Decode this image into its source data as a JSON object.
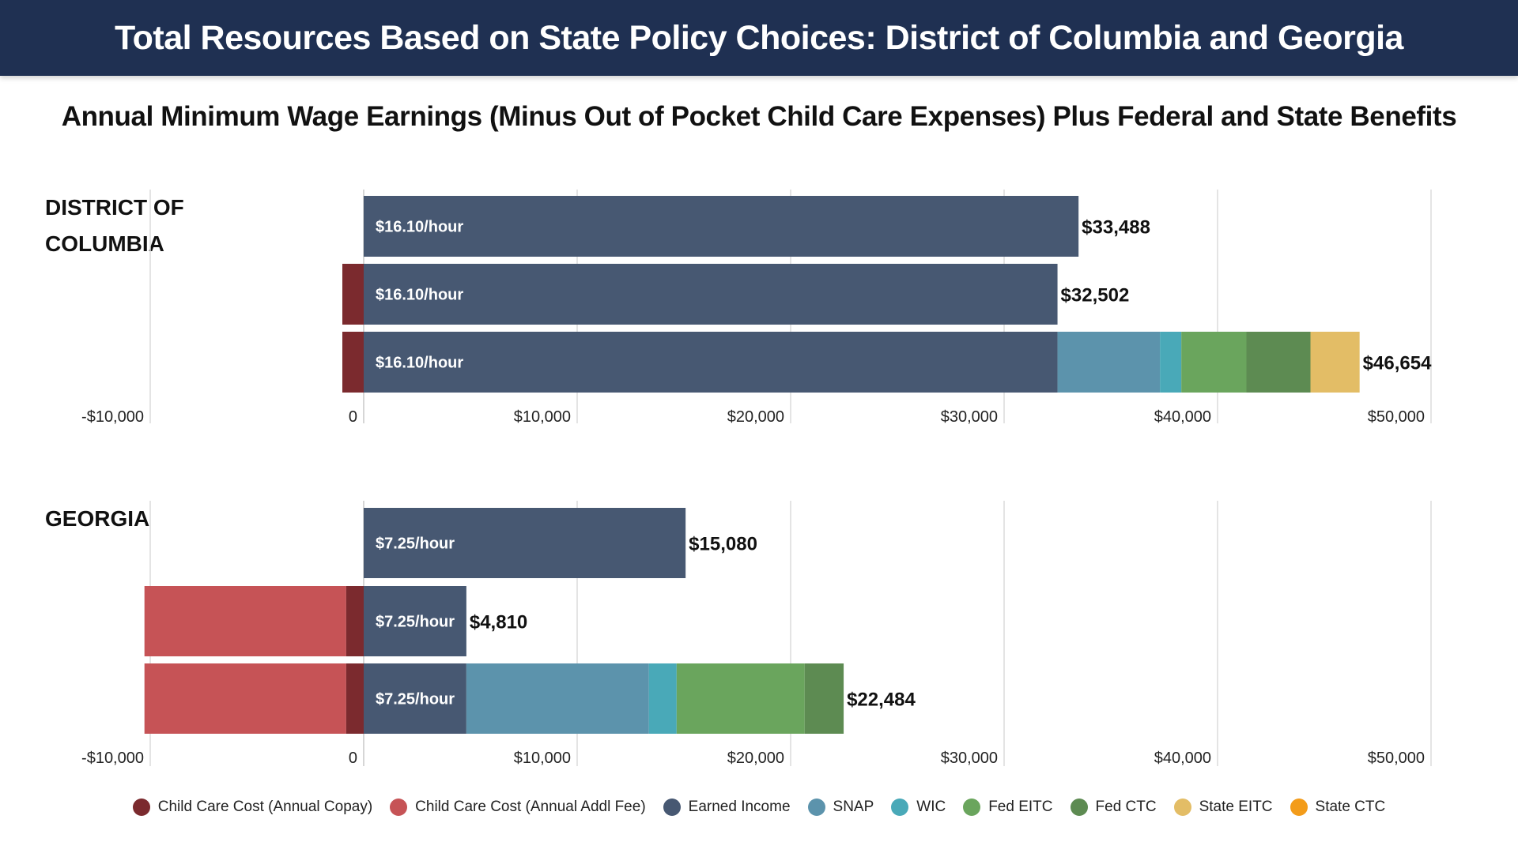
{
  "title": "Total Resources Based on State Policy Choices: District of Columbia and Georgia",
  "subtitle": "Annual Minimum Wage Earnings (Minus Out of Pocket Child Care Expenses) Plus Federal and State Benefits",
  "legend": [
    {
      "name": "Child Care Cost (Annual Copay)",
      "color": "#7b2a2e"
    },
    {
      "name": "Child Care Cost (Annual Addl Fee)",
      "color": "#c65356"
    },
    {
      "name": "Earned Income",
      "color": "#475872"
    },
    {
      "name": "SNAP",
      "color": "#5c93ac"
    },
    {
      "name": "WIC",
      "color": "#49a9b8"
    },
    {
      "name": "Fed EITC",
      "color": "#6aa55d"
    },
    {
      "name": "Fed CTC",
      "color": "#5d8b52"
    },
    {
      "name": "State EITC",
      "color": "#e3bd66"
    },
    {
      "name": "State CTC",
      "color": "#f39c1a"
    }
  ],
  "chart_data": [
    {
      "type": "bar",
      "orientation": "horizontal",
      "stacked": true,
      "section_label": "DISTRICT OF COLUMBIA",
      "xlim": [
        -10000,
        50000
      ],
      "x_ticks": [
        "-$10,000",
        "0",
        "$10,000",
        "$20,000",
        "$30,000",
        "$40,000",
        "$50,000"
      ],
      "x_tick_values": [
        -10000,
        0,
        10000,
        20000,
        30000,
        40000,
        50000
      ],
      "grid": true,
      "bars": [
        {
          "label": "$16.10/hour",
          "total": "$33,488",
          "segments": [
            {
              "series": "Earned Income",
              "value": 33488
            }
          ]
        },
        {
          "label": "$16.10/hour",
          "total": "$32,502",
          "segments": [
            {
              "series": "Child Care Cost (Annual Copay)",
              "value": -1000
            },
            {
              "series": "Earned Income",
              "value": 32502
            }
          ]
        },
        {
          "label": "$16.10/hour",
          "total": "$46,654",
          "segments": [
            {
              "series": "Child Care Cost (Annual Copay)",
              "value": -1000
            },
            {
              "series": "Earned Income",
              "value": 32502
            },
            {
              "series": "SNAP",
              "value": 4800
            },
            {
              "series": "WIC",
              "value": 1000
            },
            {
              "series": "Fed EITC",
              "value": 3050
            },
            {
              "series": "Fed CTC",
              "value": 3000
            },
            {
              "series": "State EITC",
              "value": 2302
            }
          ]
        }
      ]
    },
    {
      "type": "bar",
      "orientation": "horizontal",
      "stacked": true,
      "section_label": "GEORGIA",
      "xlim": [
        -10000,
        50000
      ],
      "x_ticks": [
        "-$10,000",
        "0",
        "$10,000",
        "$20,000",
        "$30,000",
        "$40,000",
        "$50,000"
      ],
      "x_tick_values": [
        -10000,
        0,
        10000,
        20000,
        30000,
        40000,
        50000
      ],
      "grid": true,
      "bars": [
        {
          "label": "$7.25/hour",
          "total": "$15,080",
          "segments": [
            {
              "series": "Earned Income",
              "value": 15080
            }
          ]
        },
        {
          "label": "$7.25/hour",
          "total": "$4,810",
          "segments": [
            {
              "series": "Child Care Cost (Annual Addl Fee)",
              "value": -9450
            },
            {
              "series": "Child Care Cost (Annual Copay)",
              "value": -820
            },
            {
              "series": "Earned Income",
              "value": 4810
            }
          ]
        },
        {
          "label": "$7.25/hour",
          "total": "$22,484",
          "segments": [
            {
              "series": "Child Care Cost (Annual Addl Fee)",
              "value": -9450
            },
            {
              "series": "Child Care Cost (Annual Copay)",
              "value": -820
            },
            {
              "series": "Earned Income",
              "value": 4810
            },
            {
              "series": "SNAP",
              "value": 8550
            },
            {
              "series": "WIC",
              "value": 1300
            },
            {
              "series": "Fed EITC",
              "value": 6000
            },
            {
              "series": "Fed CTC",
              "value": 1824
            }
          ]
        }
      ]
    }
  ]
}
